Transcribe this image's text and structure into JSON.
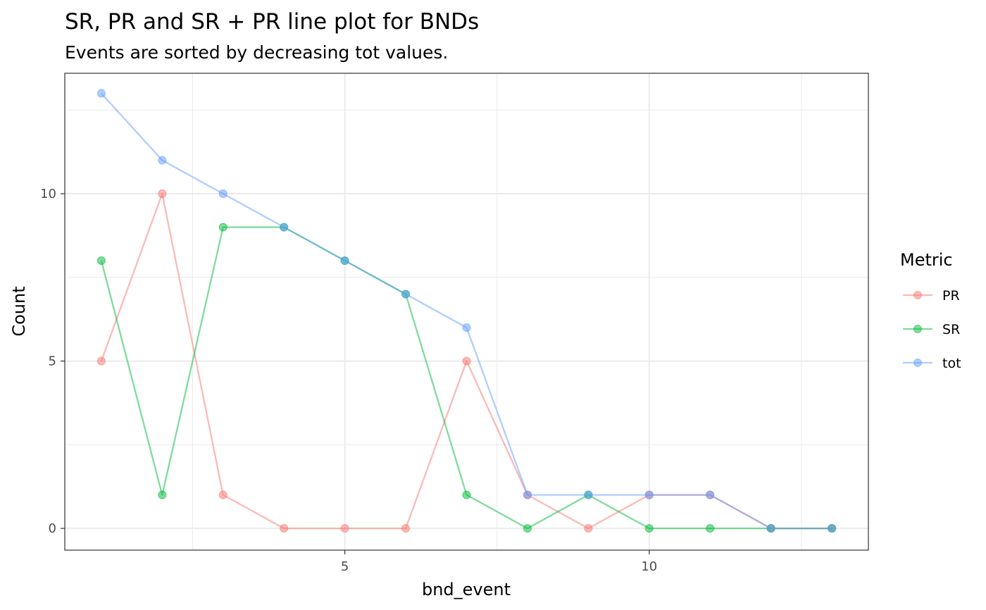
{
  "chart_data": {
    "type": "line",
    "title": "SR, PR and SR + PR line plot for BNDs",
    "subtitle": "Events are sorted by decreasing tot values.",
    "xlabel": "bnd_event",
    "ylabel": "Count",
    "xlim": [
      0.4,
      13.6
    ],
    "ylim": [
      -0.65,
      13.6
    ],
    "x_ticks": [
      5,
      10
    ],
    "y_ticks": [
      0,
      5,
      10
    ],
    "x_minor": [
      2.5,
      7.5,
      12.5
    ],
    "y_minor": [
      2.5,
      7.5,
      12.5
    ],
    "x": [
      1,
      2,
      3,
      4,
      5,
      6,
      7,
      8,
      9,
      10,
      11,
      12,
      13
    ],
    "grid": true,
    "legend": {
      "title": "Metric",
      "position": "right"
    },
    "series": [
      {
        "name": "PR",
        "color": "#F8766D",
        "values": [
          5,
          10,
          1,
          0,
          0,
          0,
          5,
          1,
          0,
          1,
          1,
          0,
          0
        ]
      },
      {
        "name": "SR",
        "color": "#00BA38",
        "values": [
          8,
          1,
          9,
          9,
          8,
          7,
          1,
          0,
          1,
          0,
          0,
          0,
          0
        ]
      },
      {
        "name": "tot",
        "color": "#619CFF",
        "values": [
          13,
          11,
          10,
          9,
          8,
          7,
          6,
          1,
          1,
          1,
          1,
          0,
          0
        ]
      }
    ]
  }
}
